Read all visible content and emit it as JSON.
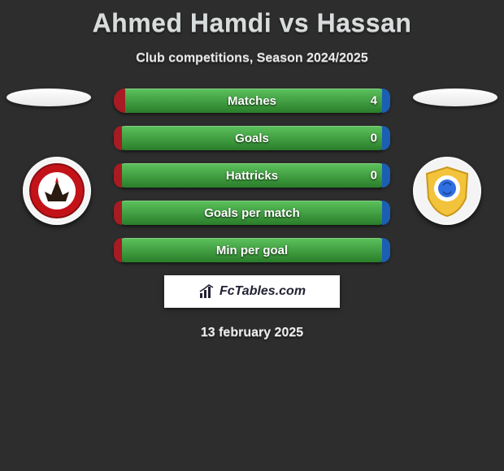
{
  "title": "Ahmed Hamdi vs Hassan",
  "subtitle": "Club competitions, Season 2024/2025",
  "date": "13 february 2025",
  "brand": "FcTables.com",
  "colors": {
    "bar_base": "#3aa03a",
    "bar_base_grad_top": "#5cc25c",
    "bar_base_grad_bot": "#2a7e2a",
    "left_fill": "#a71b22",
    "right_fill": "#1a5fb4",
    "ellipse_left": "#e8e8e8",
    "ellipse_right": "#e8e8e8"
  },
  "left_club": {
    "name": "al-ahly",
    "badge_bg": "#f4f4f4"
  },
  "right_club": {
    "name": "ismaily",
    "badge_bg": "#f4f4f4"
  },
  "bars": [
    {
      "label": "Matches",
      "left_pct": 4,
      "right_pct": 3,
      "value_right": "4"
    },
    {
      "label": "Goals",
      "left_pct": 3,
      "right_pct": 3,
      "value_right": "0"
    },
    {
      "label": "Hattricks",
      "left_pct": 3,
      "right_pct": 3,
      "value_right": "0"
    },
    {
      "label": "Goals per match",
      "left_pct": 3,
      "right_pct": 3,
      "value_right": ""
    },
    {
      "label": "Min per goal",
      "left_pct": 3,
      "right_pct": 3,
      "value_right": ""
    }
  ]
}
